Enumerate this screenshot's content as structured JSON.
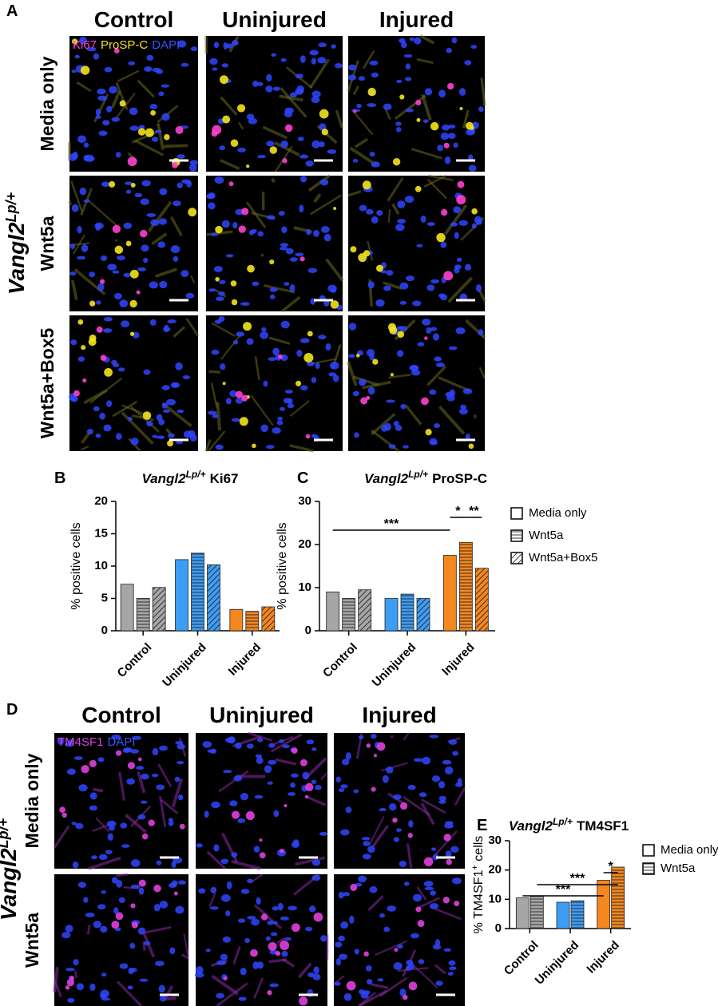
{
  "panel_a": {
    "label": "A",
    "columns": [
      "Control",
      "Uninjured",
      "Injured"
    ],
    "rows": [
      "Media only",
      "Wnt5a",
      "Wnt5a+Box5"
    ],
    "gene": "Vangl2",
    "genotype": "Lp/+",
    "stains": [
      {
        "text": "Ki67",
        "color": "#ff40d0"
      },
      {
        "text": "ProSP-C",
        "color": "#f4e41c"
      },
      {
        "text": "DAPI",
        "color": "#3555ff"
      }
    ]
  },
  "panel_d": {
    "label": "D",
    "columns": [
      "Control",
      "Uninjured",
      "Injured"
    ],
    "rows": [
      "Media only",
      "Wnt5a"
    ],
    "gene": "Vangl2",
    "genotype": "Lp/+",
    "stains": [
      {
        "text": "TM4SF1",
        "color": "#e040e0"
      },
      {
        "text": "DAPI",
        "color": "#3555ff"
      }
    ]
  },
  "chart_data": [
    {
      "type": "bar",
      "panel_label": "B",
      "title_gene": "Vangl2",
      "title_genotype": "Lp/+",
      "title_marker": "Ki67",
      "ylabel": "% positive cells",
      "categories": [
        "Control",
        "Uninjured",
        "Injured"
      ],
      "category_colors": [
        "#a6a6a6",
        "#3d9df5",
        "#f5871f"
      ],
      "series": [
        {
          "pattern": "solid",
          "values": [
            7.2,
            11.0,
            3.3
          ]
        },
        {
          "pattern": "horizontal",
          "values": [
            5.0,
            12.0,
            3.0
          ]
        },
        {
          "pattern": "diagonal",
          "values": [
            6.7,
            10.2,
            3.7
          ]
        }
      ],
      "ylim": [
        0,
        20
      ],
      "yticks": [
        0,
        5,
        10,
        15,
        20
      ],
      "annotations": []
    },
    {
      "type": "bar",
      "panel_label": "C",
      "title_gene": "Vangl2",
      "title_genotype": "Lp/+",
      "title_marker": "ProSP-C",
      "ylabel": "% positive cells",
      "categories": [
        "Control",
        "Uninjured",
        "Injured"
      ],
      "category_colors": [
        "#a6a6a6",
        "#3d9df5",
        "#f5871f"
      ],
      "series": [
        {
          "name": "Media only",
          "pattern": "solid",
          "values": [
            9.0,
            7.5,
            17.5
          ]
        },
        {
          "name": "Wnt5a",
          "pattern": "horizontal",
          "values": [
            7.5,
            8.5,
            20.5
          ]
        },
        {
          "name": "Wnt5a+Box5",
          "pattern": "diagonal",
          "values": [
            9.5,
            7.5,
            14.5
          ]
        }
      ],
      "ylim": [
        0,
        30
      ],
      "yticks": [
        0,
        10,
        20,
        30
      ],
      "annotations": [
        "***",
        "*",
        "**"
      ],
      "legend": true
    },
    {
      "type": "bar",
      "panel_label": "E",
      "title_gene": "Vangl2",
      "title_genotype": "Lp/+",
      "title_marker": "TM4SF1",
      "ylabel": "% TM4SF1",
      "ylabel_sup": "+",
      "ylabel_rest": " cells",
      "categories": [
        "Control",
        "Uninjured",
        "Injured"
      ],
      "category_colors": [
        "#a6a6a6",
        "#3d9df5",
        "#f5871f"
      ],
      "series": [
        {
          "name": "Media only",
          "pattern": "solid",
          "values": [
            10.5,
            9.0,
            16.5
          ]
        },
        {
          "name": "Wnt5a",
          "pattern": "horizontal",
          "values": [
            11.0,
            9.5,
            21.0
          ]
        }
      ],
      "ylim": [
        0,
        30
      ],
      "yticks": [
        0,
        10,
        20,
        30
      ],
      "annotations": [
        "***",
        "*",
        "***"
      ],
      "legend": true
    }
  ]
}
